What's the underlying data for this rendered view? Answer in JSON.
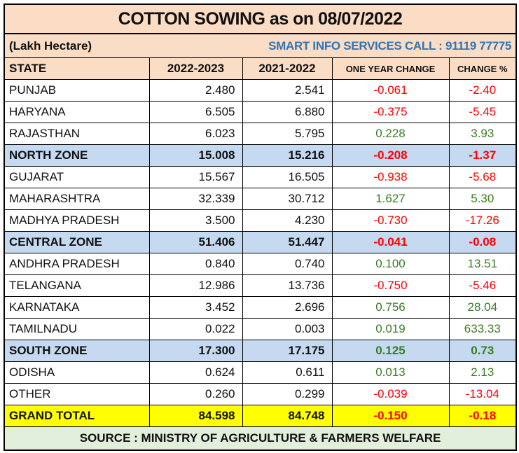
{
  "title": "COTTON SOWING  as on 08/07/2022",
  "unit": "(Lakh Hectare)",
  "brand": "SMART INFO SERVICES CALL : 91119 77775",
  "headers": [
    "STATE",
    "2022-2023",
    "2021-2022",
    "ONE YEAR CHANGE",
    "CHANGE %"
  ],
  "rows": [
    {
      "state": "PUNJAB",
      "y2022": "2.480",
      "y2021": "2.541",
      "change": "-0.061",
      "pct": "-2.40",
      "type": "state"
    },
    {
      "state": "HARYANA",
      "y2022": "6.505",
      "y2021": "6.880",
      "change": "-0.375",
      "pct": "-5.45",
      "type": "state"
    },
    {
      "state": "RAJASTHAN",
      "y2022": "6.023",
      "y2021": "5.795",
      "change": "0.228",
      "pct": "3.93",
      "type": "state"
    },
    {
      "state": "NORTH ZONE",
      "y2022": "15.008",
      "y2021": "15.216",
      "change": "-0.208",
      "pct": "-1.37",
      "type": "zone"
    },
    {
      "state": "GUJARAT",
      "y2022": "15.567",
      "y2021": "16.505",
      "change": "-0.938",
      "pct": "-5.68",
      "type": "state"
    },
    {
      "state": "MAHARASHTRA",
      "y2022": "32.339",
      "y2021": "30.712",
      "change": "1.627",
      "pct": "5.30",
      "type": "state"
    },
    {
      "state": "MADHYA PRADESH",
      "y2022": "3.500",
      "y2021": "4.230",
      "change": "-0.730",
      "pct": "-17.26",
      "type": "state"
    },
    {
      "state": "CENTRAL ZONE",
      "y2022": "51.406",
      "y2021": "51.447",
      "change": "-0.041",
      "pct": "-0.08",
      "type": "zone"
    },
    {
      "state": "ANDHRA PRADESH",
      "y2022": "0.840",
      "y2021": "0.740",
      "change": "0.100",
      "pct": "13.51",
      "type": "state"
    },
    {
      "state": "TELANGANA",
      "y2022": "12.986",
      "y2021": "13.736",
      "change": "-0.750",
      "pct": "-5.46",
      "type": "state"
    },
    {
      "state": "KARNATAKA",
      "y2022": "3.452",
      "y2021": "2.696",
      "change": "0.756",
      "pct": "28.04",
      "type": "state"
    },
    {
      "state": "TAMILNADU",
      "y2022": "0.022",
      "y2021": "0.003",
      "change": "0.019",
      "pct": "633.33",
      "type": "state"
    },
    {
      "state": "SOUTH ZONE",
      "y2022": "17.300",
      "y2021": "17.175",
      "change": "0.125",
      "pct": "0.73",
      "type": "zone"
    },
    {
      "state": "ODISHA",
      "y2022": "0.624",
      "y2021": "0.611",
      "change": "0.013",
      "pct": "2.13",
      "type": "state"
    },
    {
      "state": "OTHER",
      "y2022": "0.260",
      "y2021": "0.299",
      "change": "-0.039",
      "pct": "-13.04",
      "type": "state"
    },
    {
      "state": "GRAND TOTAL",
      "y2022": "84.598",
      "y2021": "84.748",
      "change": "-0.150",
      "pct": "-0.18",
      "type": "total"
    }
  ],
  "source": "SOURCE : MINISTRY OF AGRICULTURE & FARMERS WELFARE",
  "colors": {
    "header_bg": "#FBDCC4",
    "zone_bg": "#C5D9F1",
    "total_bg": "#FFFF00",
    "source_bg": "#E2EFDA",
    "negative": "#FF0000",
    "positive": "#3B7D23",
    "brand": "#2E75B6"
  }
}
